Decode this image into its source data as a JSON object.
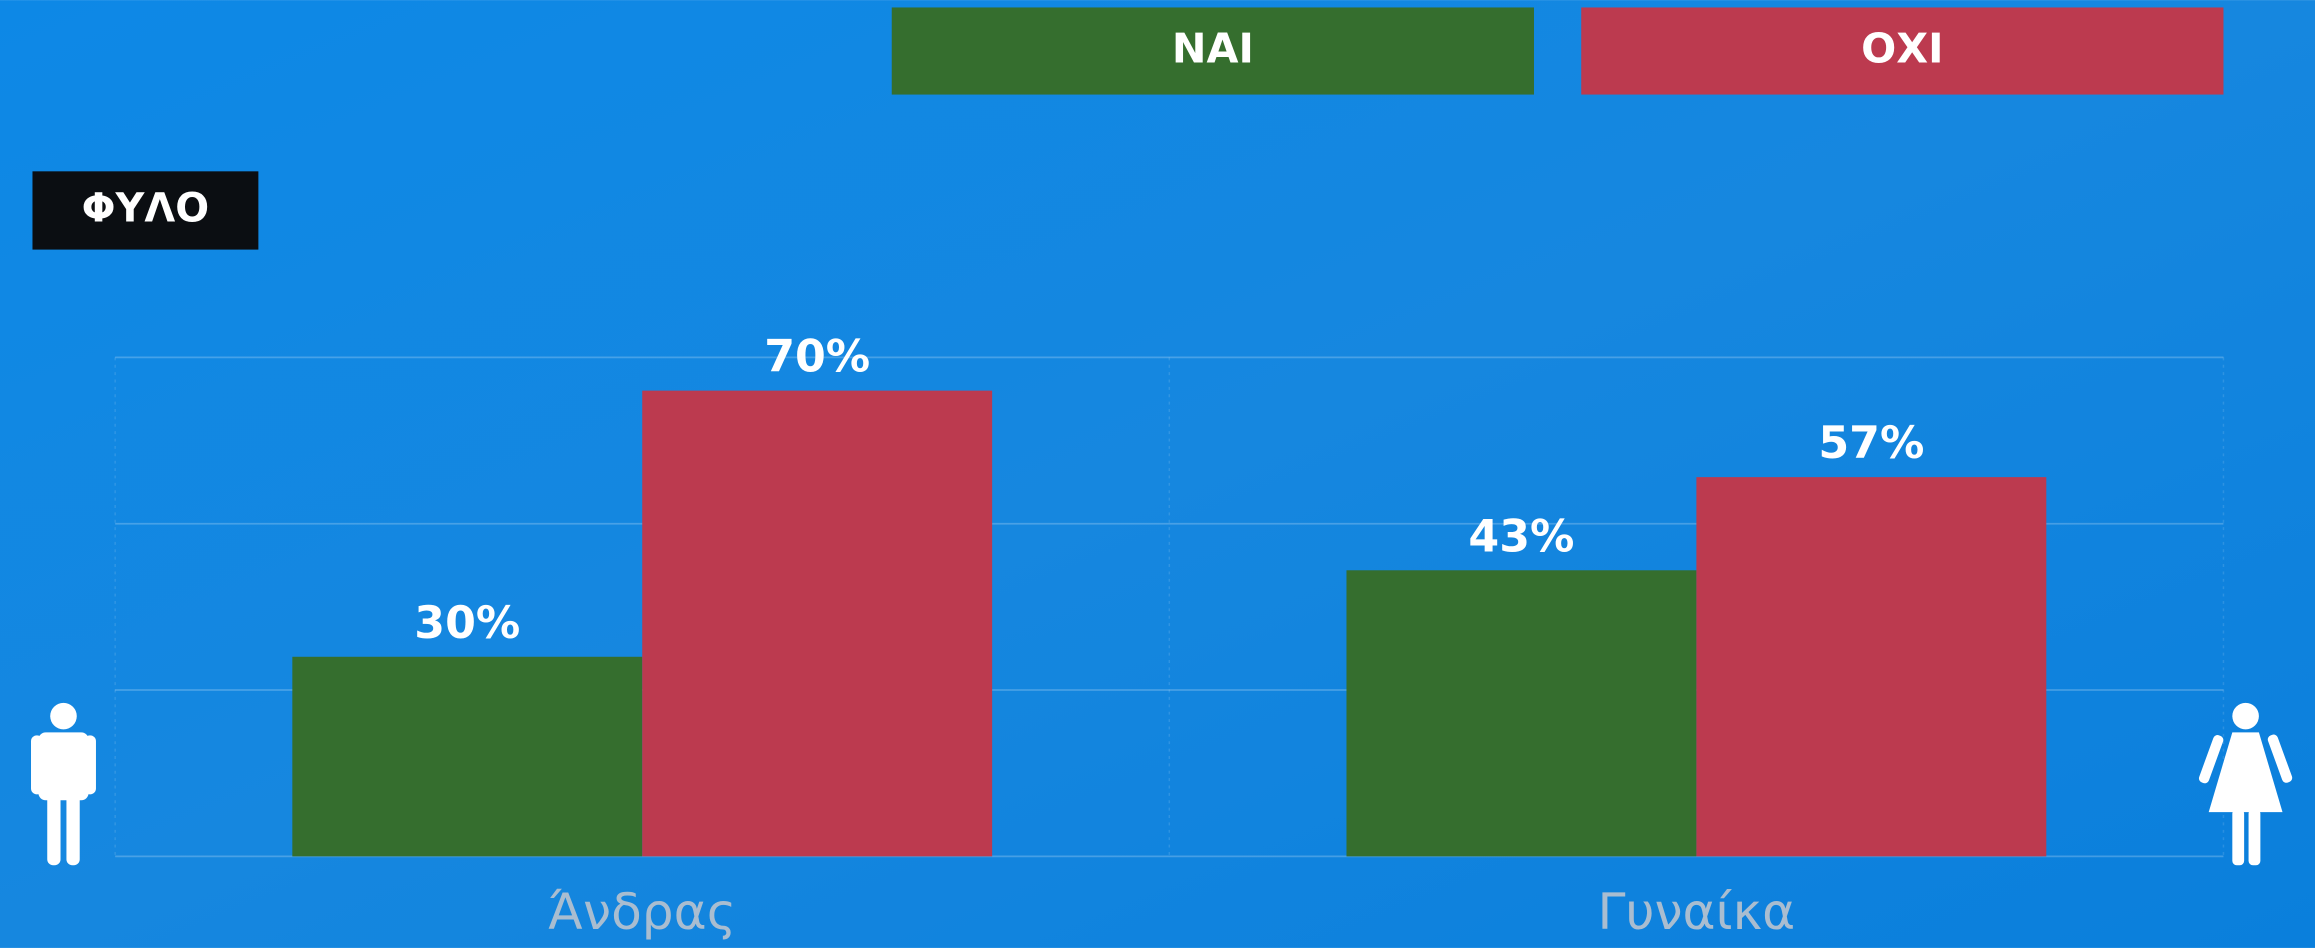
{
  "chart_data": {
    "type": "bar",
    "title": "ΦΥΛΟ",
    "categories": [
      "Άνδρας",
      "Γυναίκα"
    ],
    "series": [
      {
        "name": "ΝΑΙ",
        "color": "#356e2e",
        "values": [
          30,
          43
        ],
        "value_labels": [
          "30%",
          "43%"
        ]
      },
      {
        "name": "ΟΧΙ",
        "color": "#bc3a4f",
        "values": [
          70,
          57
        ],
        "value_labels": [
          "70%",
          "57%"
        ]
      }
    ],
    "ylim": [
      0,
      75
    ],
    "yticks": [
      0,
      25,
      50,
      75
    ],
    "grid": true
  }
}
